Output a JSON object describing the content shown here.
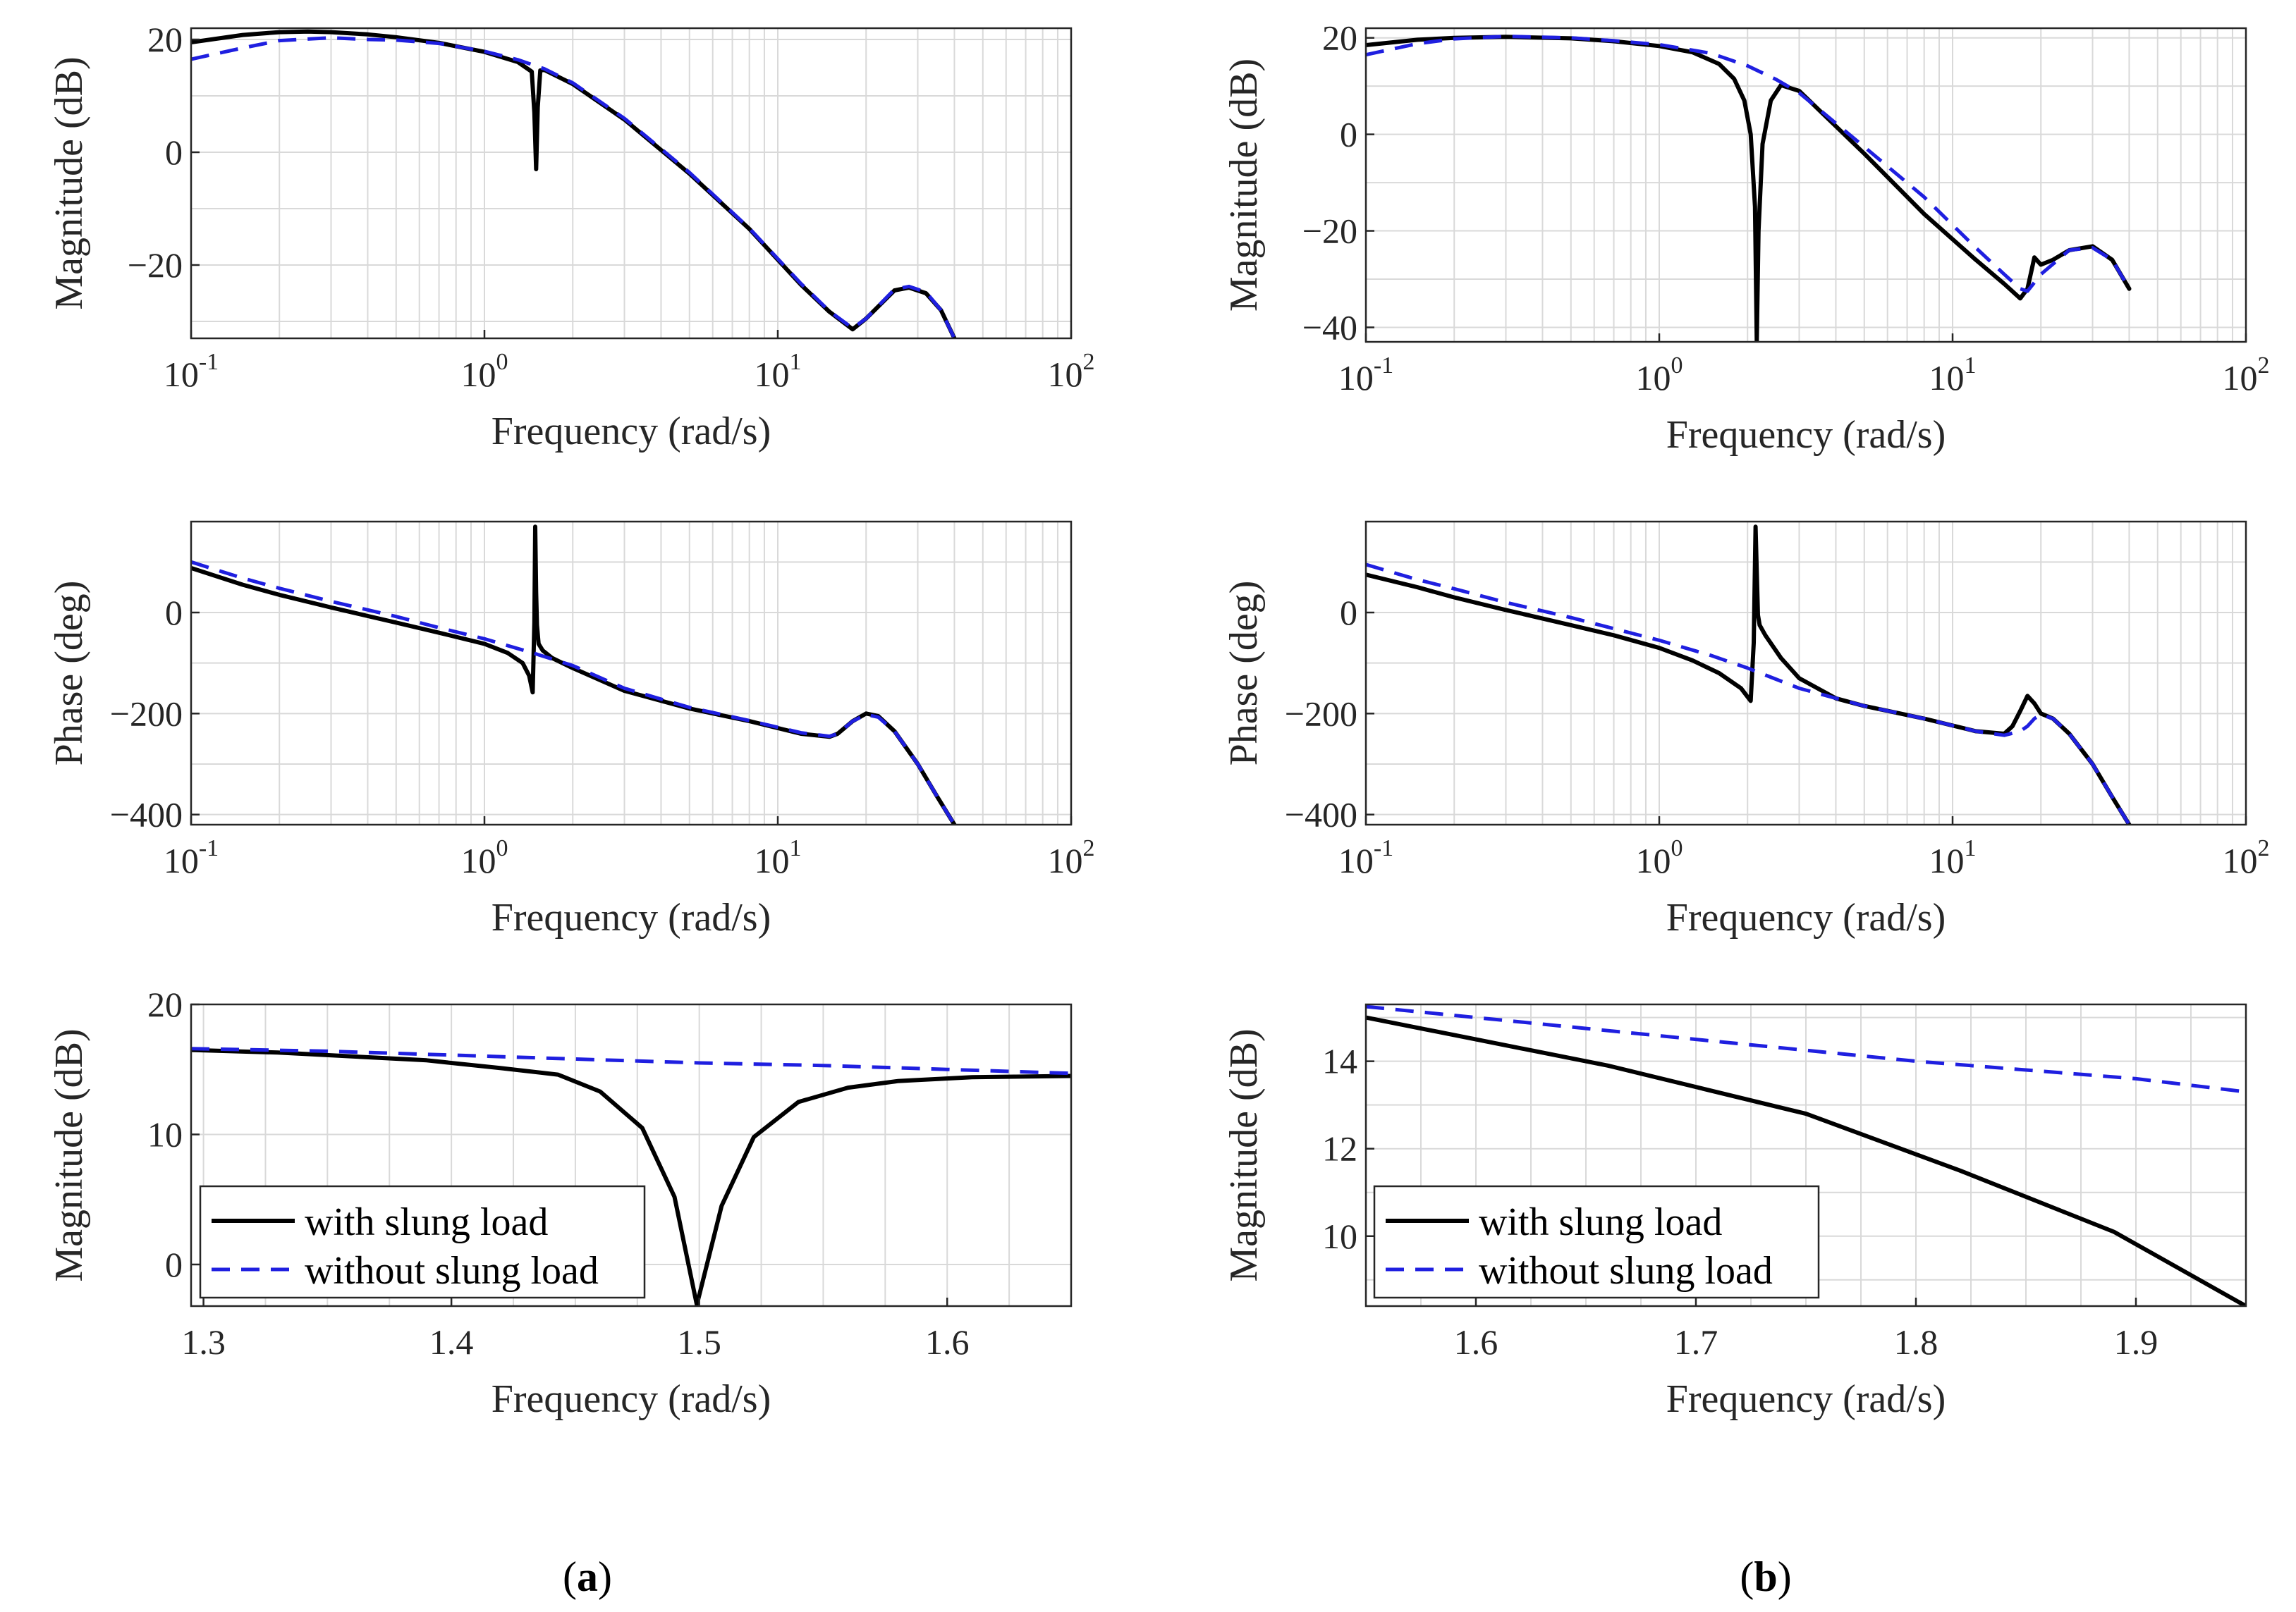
{
  "colors": {
    "with": "#000000",
    "without": "#1f1fe0",
    "grid": "#d9d9d9",
    "axis": "#262626"
  },
  "panel_labels": [
    {
      "pre": "(",
      "letter": "a",
      "post": ")"
    },
    {
      "pre": "(",
      "letter": "b",
      "post": ")"
    }
  ],
  "legend": {
    "with_label": "with slung load",
    "without_label": "without slung load"
  },
  "chart_data": [
    {
      "id": "a_mag",
      "type": "line",
      "xscale": "log",
      "xlabel": "Frequency (rad/s)",
      "ylabel": "Magnitude (dB)",
      "xlim": [
        0.1,
        100
      ],
      "ylim": [
        -33,
        22
      ],
      "xticks": [
        {
          "v": 0.1,
          "base": "10",
          "exp": "-1"
        },
        {
          "v": 1,
          "base": "10",
          "exp": "0"
        },
        {
          "v": 10,
          "base": "10",
          "exp": "1"
        },
        {
          "v": 100,
          "base": "10",
          "exp": "2"
        }
      ],
      "yticks": [
        {
          "v": 20,
          "label": "20"
        },
        {
          "v": 0,
          "label": "0"
        },
        {
          "v": -20,
          "label": "−20"
        }
      ],
      "grid": true,
      "series": [
        {
          "name": "with slung load",
          "style": "solid",
          "x": [
            0.1,
            0.15,
            0.2,
            0.25,
            0.3,
            0.4,
            0.5,
            0.7,
            1.0,
            1.3,
            1.45,
            1.48,
            1.5,
            1.52,
            1.55,
            1.6,
            2,
            3,
            5,
            8,
            12,
            15,
            18,
            20,
            25,
            28,
            32,
            36,
            40
          ],
          "y": [
            19.5,
            20.8,
            21.3,
            21.4,
            21.3,
            20.9,
            20.4,
            19.4,
            17.8,
            16.0,
            14.3,
            7,
            -3,
            8,
            14.5,
            14.6,
            12.1,
            5.8,
            -3.8,
            -13.6,
            -23.5,
            -28.3,
            -31.4,
            -29.5,
            -24.5,
            -24.0,
            -25.0,
            -28,
            -33
          ]
        },
        {
          "name": "without slung load",
          "style": "dashed",
          "x": [
            0.1,
            0.15,
            0.2,
            0.3,
            0.4,
            0.5,
            0.7,
            1.0,
            1.3,
            1.6,
            2,
            3,
            5,
            8,
            12,
            15,
            18,
            20,
            25,
            28,
            32,
            36,
            40
          ],
          "y": [
            16.5,
            18.5,
            19.8,
            20.3,
            20.0,
            19.9,
            19.3,
            17.9,
            16.4,
            14.8,
            12.3,
            6.0,
            -3.6,
            -13.5,
            -23.3,
            -28.2,
            -31.2,
            -29.5,
            -24.3,
            -23.8,
            -24.8,
            -28,
            -33
          ]
        }
      ]
    },
    {
      "id": "b_mag",
      "type": "line",
      "xscale": "log",
      "xlabel": "Frequency (rad/s)",
      "ylabel": "Magnitude (dB)",
      "xlim": [
        0.1,
        100
      ],
      "ylim": [
        -43,
        22
      ],
      "xticks": [
        {
          "v": 0.1,
          "base": "10",
          "exp": "-1"
        },
        {
          "v": 1,
          "base": "10",
          "exp": "0"
        },
        {
          "v": 10,
          "base": "10",
          "exp": "1"
        },
        {
          "v": 100,
          "base": "10",
          "exp": "2"
        }
      ],
      "yticks": [
        {
          "v": 20,
          "label": "20"
        },
        {
          "v": 0,
          "label": "0"
        },
        {
          "v": -20,
          "label": "−20"
        },
        {
          "v": -40,
          "label": "−40"
        }
      ],
      "grid": true,
      "series": [
        {
          "name": "with slung load",
          "style": "solid",
          "x": [
            0.1,
            0.15,
            0.2,
            0.3,
            0.5,
            0.7,
            1.0,
            1.3,
            1.6,
            1.8,
            1.95,
            2.05,
            2.12,
            2.15,
            2.18,
            2.25,
            2.4,
            2.6,
            3,
            5,
            8,
            12,
            15,
            17,
            18,
            19,
            20,
            22,
            25,
            30,
            35,
            40
          ],
          "y": [
            18.5,
            19.6,
            20.0,
            20.2,
            19.9,
            19.3,
            18.3,
            17.0,
            14.6,
            11.5,
            7,
            0,
            -15,
            -43,
            -20,
            -2,
            7,
            10.2,
            9,
            -4,
            -16.5,
            -26,
            -31,
            -34,
            -32,
            -25.5,
            -27,
            -26,
            -24,
            -23.2,
            -26,
            -32
          ]
        },
        {
          "name": "without slung load",
          "style": "dashed",
          "x": [
            0.1,
            0.15,
            0.2,
            0.3,
            0.5,
            0.7,
            1.0,
            1.5,
            2,
            2.5,
            3,
            5,
            8,
            12,
            15,
            17,
            18,
            20,
            25,
            30,
            35,
            40
          ],
          "y": [
            16.5,
            18.8,
            19.8,
            20.3,
            20.0,
            19.4,
            18.6,
            16.8,
            14.2,
            11.4,
            8.6,
            -2.6,
            -13,
            -23.5,
            -29,
            -32,
            -32.5,
            -29,
            -24,
            -23.5,
            -26,
            -32
          ]
        }
      ]
    },
    {
      "id": "a_phase",
      "type": "line",
      "xscale": "log",
      "xlabel": "Frequency (rad/s)",
      "ylabel": "Phase (deg)",
      "xlim": [
        0.1,
        100
      ],
      "ylim": [
        -420,
        180
      ],
      "xticks": [
        {
          "v": 0.1,
          "base": "10",
          "exp": "-1"
        },
        {
          "v": 1,
          "base": "10",
          "exp": "0"
        },
        {
          "v": 10,
          "base": "10",
          "exp": "1"
        },
        {
          "v": 100,
          "base": "10",
          "exp": "2"
        }
      ],
      "yticks": [
        {
          "v": 0,
          "label": "0"
        },
        {
          "v": -200,
          "label": "−200"
        },
        {
          "v": -400,
          "label": "−400"
        }
      ],
      "grid": true,
      "series": [
        {
          "name": "with slung load",
          "style": "solid",
          "x": [
            0.1,
            0.15,
            0.2,
            0.3,
            0.5,
            0.7,
            1.0,
            1.2,
            1.35,
            1.42,
            1.46,
            1.48,
            1.49,
            1.5,
            1.51,
            1.53,
            1.58,
            1.7,
            2,
            3,
            5,
            8,
            12,
            15,
            16,
            18,
            20,
            22,
            25,
            30,
            35,
            40
          ],
          "y": [
            88,
            55,
            35,
            10,
            -20,
            -40,
            -62,
            -80,
            -100,
            -125,
            -158,
            -20,
            170,
            40,
            -25,
            -62,
            -75,
            -90,
            -110,
            -155,
            -190,
            -215,
            -240,
            -246,
            -240,
            -215,
            -200,
            -205,
            -235,
            -300,
            -365,
            -420
          ]
        },
        {
          "name": "without slung load",
          "style": "dashed",
          "x": [
            0.1,
            0.15,
            0.2,
            0.3,
            0.5,
            0.7,
            1.0,
            1.5,
            2,
            3,
            5,
            8,
            12,
            15,
            16,
            18,
            20,
            22,
            25,
            30,
            35,
            40
          ],
          "y": [
            100,
            68,
            48,
            22,
            -8,
            -30,
            -52,
            -82,
            -105,
            -150,
            -188,
            -214,
            -238,
            -245,
            -240,
            -215,
            -202,
            -207,
            -235,
            -300,
            -365,
            -420
          ]
        }
      ]
    },
    {
      "id": "b_phase",
      "type": "line",
      "xscale": "log",
      "xlabel": "Frequency (rad/s)",
      "ylabel": "Phase (deg)",
      "xlim": [
        0.1,
        100
      ],
      "ylim": [
        -420,
        180
      ],
      "xticks": [
        {
          "v": 0.1,
          "base": "10",
          "exp": "-1"
        },
        {
          "v": 1,
          "base": "10",
          "exp": "0"
        },
        {
          "v": 10,
          "base": "10",
          "exp": "1"
        },
        {
          "v": 100,
          "base": "10",
          "exp": "2"
        }
      ],
      "yticks": [
        {
          "v": 0,
          "label": "0"
        },
        {
          "v": -200,
          "label": "−200"
        },
        {
          "v": -400,
          "label": "−400"
        }
      ],
      "grid": true,
      "series": [
        {
          "name": "with slung load",
          "style": "solid",
          "x": [
            0.1,
            0.15,
            0.2,
            0.3,
            0.5,
            0.7,
            1.0,
            1.3,
            1.6,
            1.9,
            2.05,
            2.1,
            2.13,
            2.15,
            2.17,
            2.2,
            2.3,
            2.6,
            3,
            4,
            5,
            8,
            12,
            15,
            16,
            17,
            18,
            19,
            20,
            22,
            25,
            30,
            35,
            40
          ],
          "y": [
            75,
            50,
            30,
            5,
            -25,
            -45,
            -70,
            -95,
            -120,
            -150,
            -175,
            -60,
            170,
            80,
            -5,
            -25,
            -45,
            -90,
            -130,
            -170,
            -185,
            -210,
            -235,
            -240,
            -225,
            -195,
            -165,
            -180,
            -200,
            -210,
            -240,
            -300,
            -365,
            -420
          ]
        },
        {
          "name": "without slung load",
          "style": "dashed",
          "x": [
            0.1,
            0.15,
            0.2,
            0.3,
            0.5,
            0.7,
            1.0,
            1.5,
            2,
            3,
            5,
            8,
            12,
            15,
            17,
            18,
            19,
            20,
            22,
            25,
            30,
            35,
            40
          ],
          "y": [
            95,
            65,
            47,
            20,
            -10,
            -32,
            -55,
            -85,
            -110,
            -150,
            -185,
            -210,
            -235,
            -243,
            -235,
            -225,
            -210,
            -202,
            -210,
            -240,
            -300,
            -365,
            -420
          ]
        }
      ]
    },
    {
      "id": "a_zoom",
      "type": "line",
      "xscale": "linear",
      "xlabel": "Frequency (rad/s)",
      "ylabel": "Magnitude (dB)",
      "xlim": [
        1.295,
        1.65
      ],
      "ylim": [
        -3.2,
        20
      ],
      "xticks": [
        {
          "v": 1.3,
          "label": "1.3"
        },
        {
          "v": 1.4,
          "label": "1.4"
        },
        {
          "v": 1.5,
          "label": "1.5"
        },
        {
          "v": 1.6,
          "label": "1.6"
        }
      ],
      "yticks": [
        {
          "v": 20,
          "label": "20"
        },
        {
          "v": 10,
          "label": "10"
        },
        {
          "v": 0,
          "label": "0"
        }
      ],
      "grid": true,
      "series": [
        {
          "name": "with slung load",
          "style": "solid",
          "x": [
            1.295,
            1.33,
            1.36,
            1.39,
            1.42,
            1.443,
            1.46,
            1.477,
            1.49,
            1.499,
            1.509,
            1.522,
            1.54,
            1.56,
            1.58,
            1.61,
            1.65
          ],
          "y": [
            16.5,
            16.3,
            16.0,
            15.7,
            15.1,
            14.6,
            13.3,
            10.5,
            5.2,
            -3.1,
            4.5,
            9.8,
            12.5,
            13.6,
            14.1,
            14.4,
            14.5
          ]
        },
        {
          "name": "without slung load",
          "style": "dashed",
          "x": [
            1.295,
            1.35,
            1.4,
            1.45,
            1.5,
            1.55,
            1.6,
            1.65
          ],
          "y": [
            16.6,
            16.4,
            16.1,
            15.8,
            15.5,
            15.3,
            15.0,
            14.7
          ]
        }
      ]
    },
    {
      "id": "b_zoom",
      "type": "line",
      "xscale": "linear",
      "xlabel": "Frequency (rad/s)",
      "ylabel": "Magnitude (dB)",
      "xlim": [
        1.55,
        1.95
      ],
      "ylim": [
        8.4,
        15.3
      ],
      "xticks": [
        {
          "v": 1.6,
          "label": "1.6"
        },
        {
          "v": 1.7,
          "label": "1.7"
        },
        {
          "v": 1.8,
          "label": "1.8"
        },
        {
          "v": 1.9,
          "label": "1.9"
        }
      ],
      "yticks": [
        {
          "v": 14,
          "label": "14"
        },
        {
          "v": 12,
          "label": "12"
        },
        {
          "v": 10,
          "label": "10"
        }
      ],
      "grid": true,
      "series": [
        {
          "name": "with slung load",
          "style": "solid",
          "x": [
            1.55,
            1.6,
            1.66,
            1.75,
            1.82,
            1.89,
            1.95
          ],
          "y": [
            15.0,
            14.5,
            13.9,
            12.8,
            11.5,
            10.1,
            8.4
          ]
        },
        {
          "name": "without slung load",
          "style": "dashed",
          "x": [
            1.55,
            1.6,
            1.7,
            1.8,
            1.9,
            1.95
          ],
          "y": [
            15.25,
            15.0,
            14.5,
            14.0,
            13.6,
            13.3
          ]
        }
      ]
    }
  ]
}
